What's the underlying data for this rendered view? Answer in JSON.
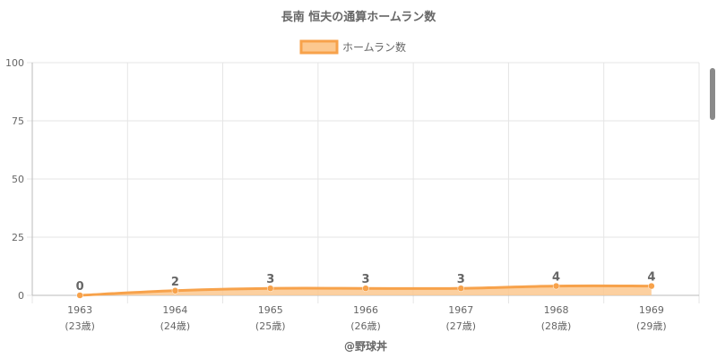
{
  "chart_data": {
    "type": "area",
    "title": "長南 恒夫の通算ホームラン数",
    "legend": {
      "label": "ホームラン数",
      "position": "top-center"
    },
    "categories": [
      "1963",
      "1964",
      "1965",
      "1966",
      "1967",
      "1968",
      "1969"
    ],
    "sub_labels": [
      "(23歳)",
      "(24歳)",
      "(25歳)",
      "(26歳)",
      "(27歳)",
      "(28歳)",
      "(29歳)"
    ],
    "series": [
      {
        "name": "ホームラン数",
        "values": [
          0,
          2,
          3,
          3,
          3,
          4,
          4
        ]
      }
    ],
    "ylim": [
      0,
      100
    ],
    "yticks": [
      0,
      25,
      50,
      75,
      100
    ],
    "grid": true,
    "colors": {
      "line": "#f7a24b",
      "fill": "#fcc88f",
      "grid": "#e5e5e5",
      "axis": "#bbbbbb"
    }
  },
  "credit": "@野球丼"
}
